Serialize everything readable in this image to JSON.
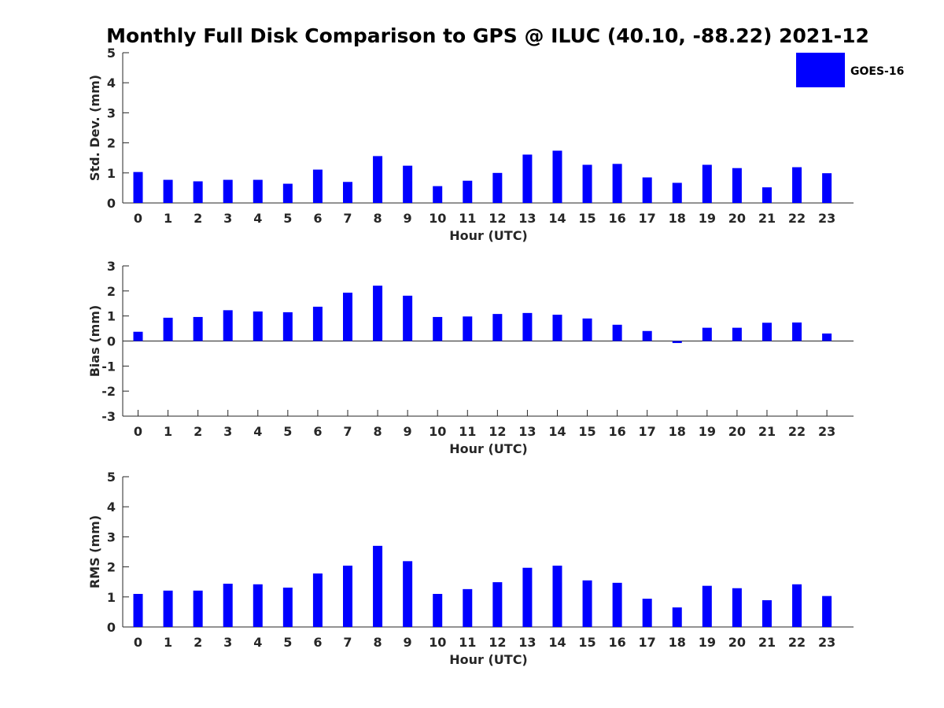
{
  "title": "Monthly Full Disk Comparison to GPS @ ILUC (40.10, -88.22) 2021-12",
  "legend": {
    "label": "GOES-16",
    "color": "#0000ff",
    "position": "top-right"
  },
  "chart_data": [
    {
      "type": "bar",
      "ylabel": "Std. Dev. (mm)",
      "xlabel": "Hour (UTC)",
      "ylim": [
        0,
        5
      ],
      "yticks": [
        "0",
        "1",
        "2",
        "3",
        "4",
        "5"
      ],
      "categories": [
        "0",
        "1",
        "2",
        "3",
        "4",
        "5",
        "6",
        "7",
        "8",
        "9",
        "10",
        "11",
        "12",
        "13",
        "14",
        "15",
        "16",
        "17",
        "18",
        "19",
        "20",
        "21",
        "22",
        "23"
      ],
      "series": [
        {
          "name": "GOES-16",
          "color": "#0000ff",
          "values": [
            1.03,
            0.77,
            0.72,
            0.77,
            0.77,
            0.64,
            1.11,
            0.7,
            1.56,
            1.24,
            0.56,
            0.74,
            1.0,
            1.61,
            1.74,
            1.27,
            1.3,
            0.85,
            0.67,
            1.27,
            1.16,
            0.52,
            1.19,
            0.99
          ]
        }
      ],
      "grid": false
    },
    {
      "type": "bar",
      "ylabel": "Bias (mm)",
      "xlabel": "Hour (UTC)",
      "ylim": [
        -3,
        3
      ],
      "yticks": [
        "-3",
        "-2",
        "-1",
        "0",
        "1",
        "2",
        "3"
      ],
      "categories": [
        "0",
        "1",
        "2",
        "3",
        "4",
        "5",
        "6",
        "7",
        "8",
        "9",
        "10",
        "11",
        "12",
        "13",
        "14",
        "15",
        "16",
        "17",
        "18",
        "19",
        "20",
        "21",
        "22",
        "23"
      ],
      "series": [
        {
          "name": "GOES-16",
          "color": "#0000ff",
          "values": [
            0.37,
            0.93,
            0.96,
            1.23,
            1.18,
            1.15,
            1.37,
            1.93,
            2.21,
            1.81,
            0.96,
            0.98,
            1.08,
            1.12,
            1.05,
            0.9,
            0.65,
            0.4,
            -0.08,
            0.53,
            0.53,
            0.73,
            0.74,
            0.3
          ]
        }
      ],
      "zero_line": true,
      "grid": false
    },
    {
      "type": "bar",
      "ylabel": "RMS (mm)",
      "xlabel": "Hour (UTC)",
      "ylim": [
        0,
        5
      ],
      "yticks": [
        "0",
        "1",
        "2",
        "3",
        "4",
        "5"
      ],
      "categories": [
        "0",
        "1",
        "2",
        "3",
        "4",
        "5",
        "6",
        "7",
        "8",
        "9",
        "10",
        "11",
        "12",
        "13",
        "14",
        "15",
        "16",
        "17",
        "18",
        "19",
        "20",
        "21",
        "22",
        "23"
      ],
      "series": [
        {
          "name": "GOES-16",
          "color": "#0000ff",
          "values": [
            1.1,
            1.21,
            1.21,
            1.44,
            1.42,
            1.31,
            1.78,
            2.04,
            2.7,
            2.19,
            1.1,
            1.26,
            1.49,
            1.97,
            2.04,
            1.55,
            1.47,
            0.94,
            0.65,
            1.37,
            1.29,
            0.89,
            1.42,
            1.03
          ]
        }
      ],
      "grid": false
    }
  ]
}
